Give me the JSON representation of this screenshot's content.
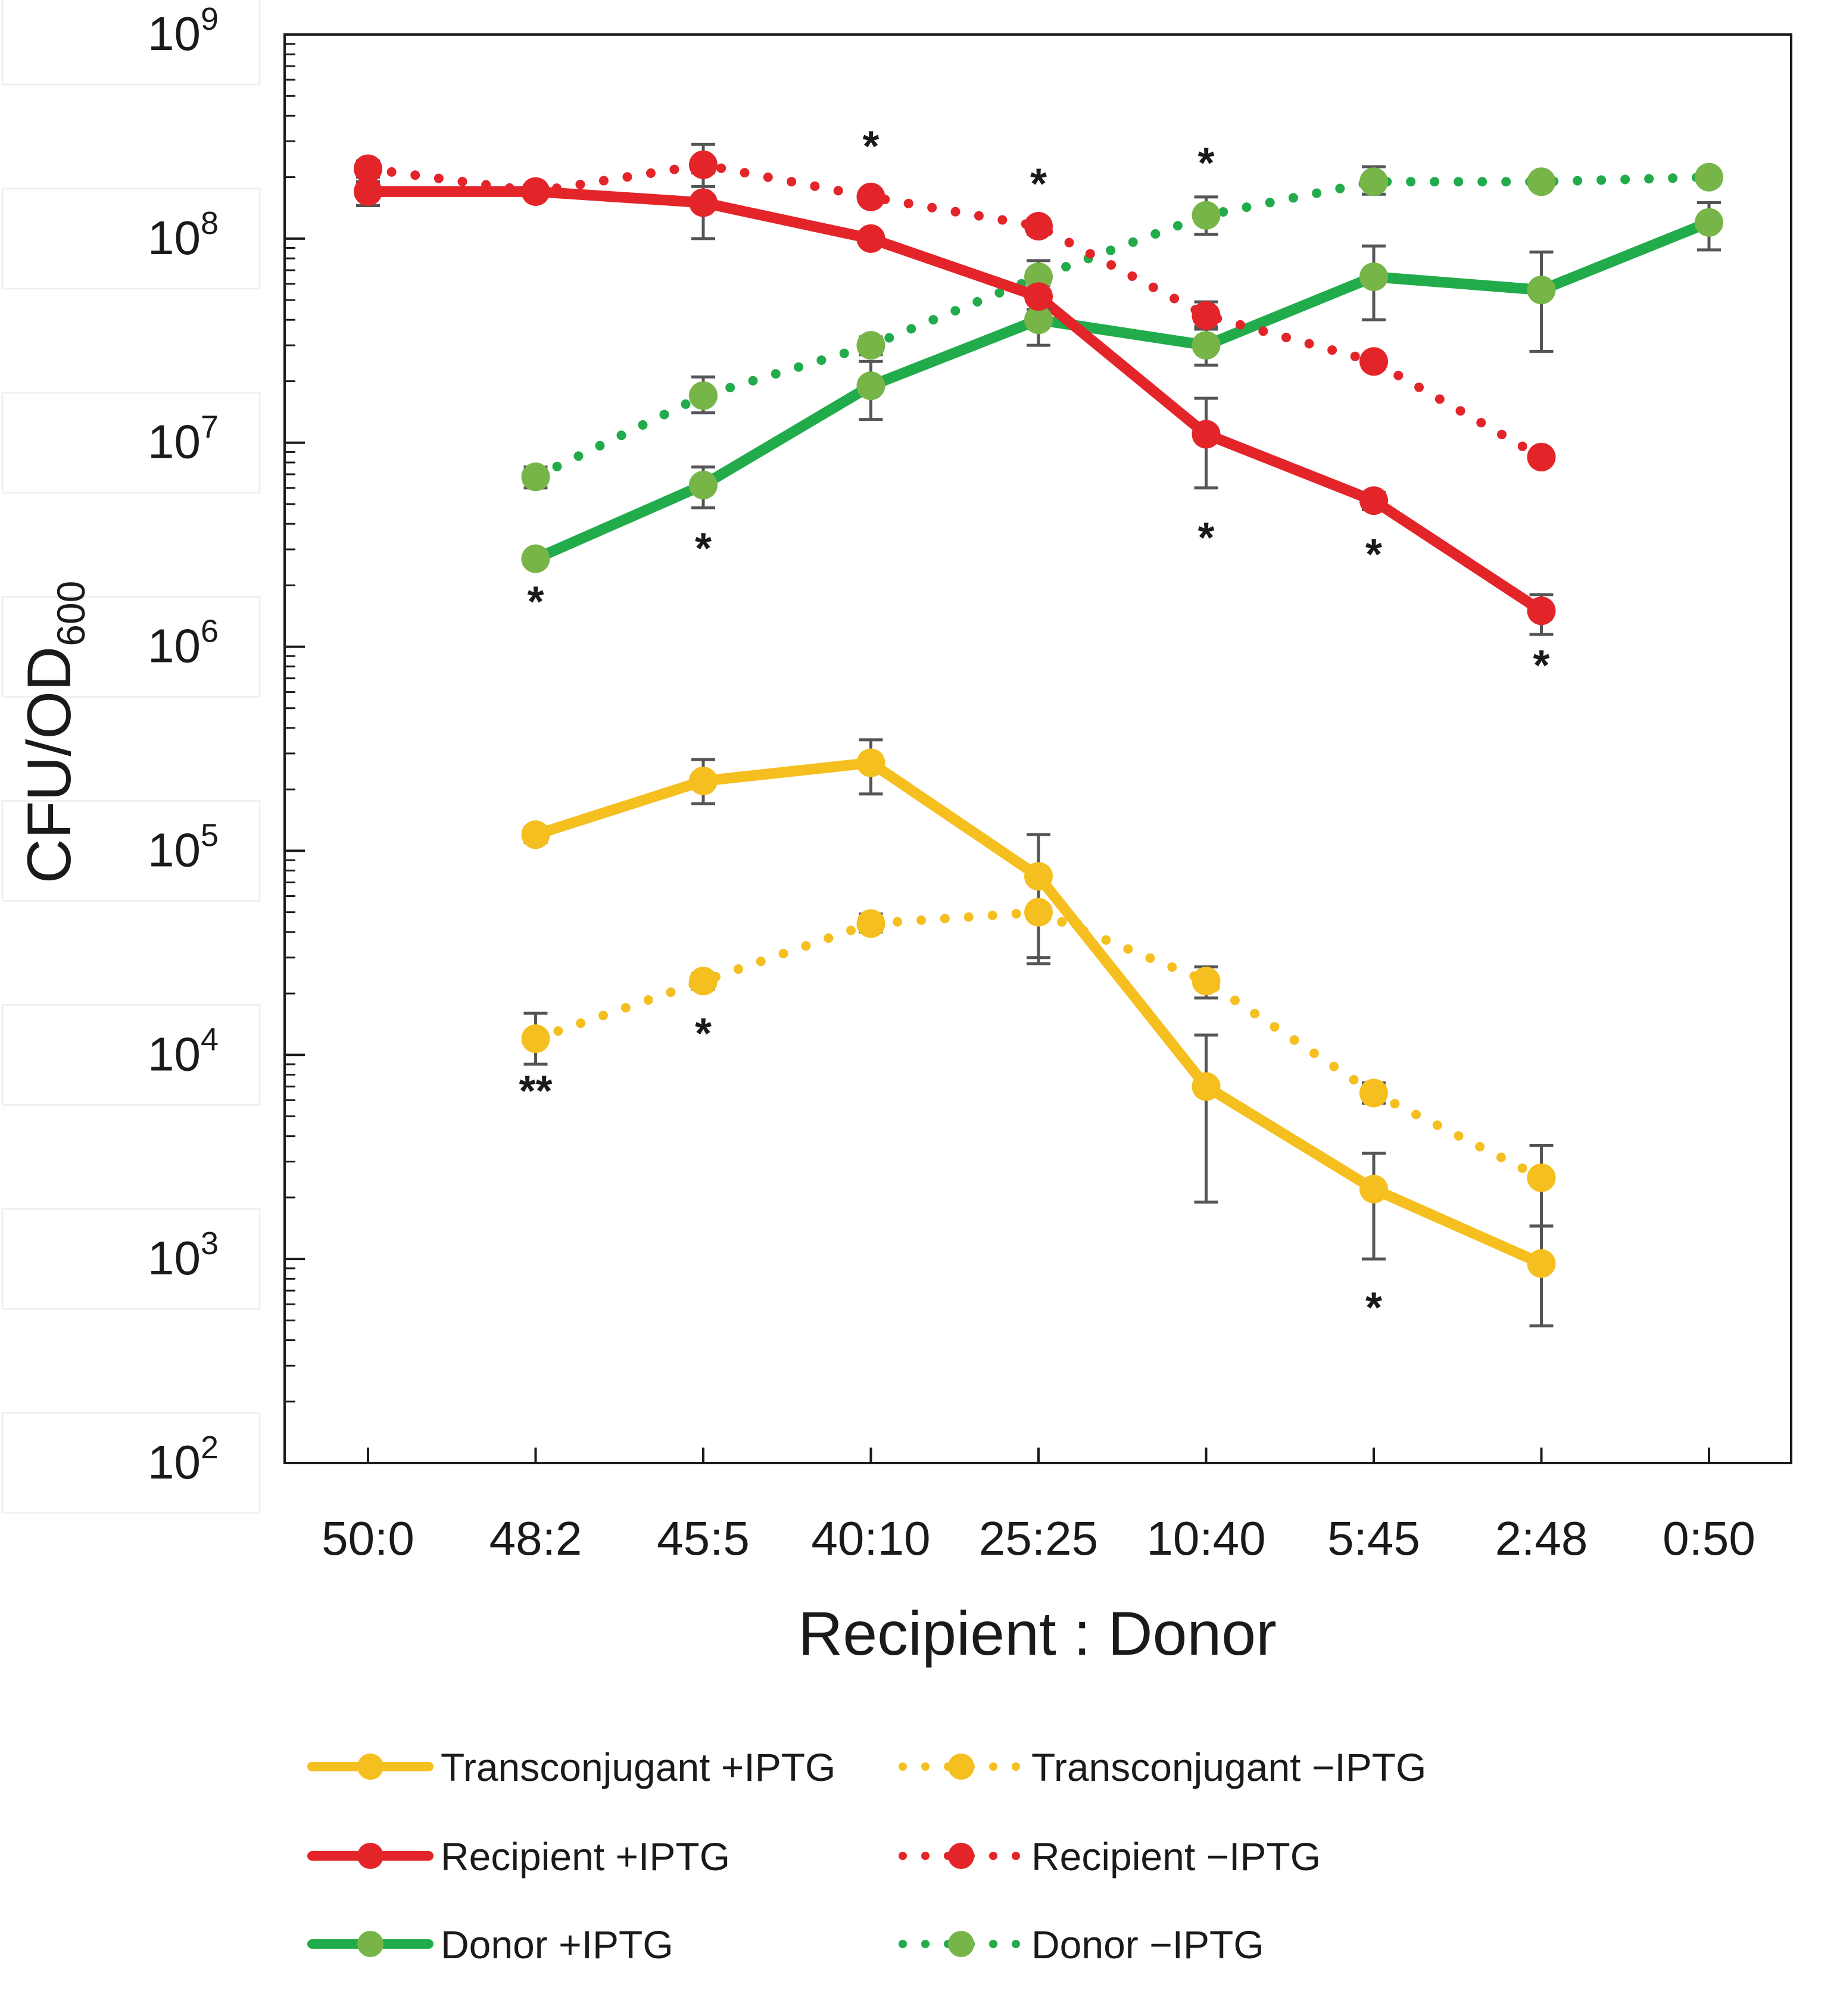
{
  "chart_data": {
    "type": "line",
    "ylabel": "CFU/OD",
    "ylabel_sub": "600",
    "xlabel": "Recipient : Donor",
    "y_scale": "log10",
    "ylim": [
      100,
      1000000000
    ],
    "yticks": [
      {
        "base": "10",
        "exp": "2",
        "value": 100
      },
      {
        "base": "10",
        "exp": "3",
        "value": 1000
      },
      {
        "base": "10",
        "exp": "4",
        "value": 10000
      },
      {
        "base": "10",
        "exp": "5",
        "value": 100000
      },
      {
        "base": "10",
        "exp": "6",
        "value": 1000000
      },
      {
        "base": "10",
        "exp": "7",
        "value": 10000000
      },
      {
        "base": "10",
        "exp": "8",
        "value": 100000000
      },
      {
        "base": "10",
        "exp": "9",
        "value": 1000000000
      }
    ],
    "categories": [
      "50:0",
      "48:2",
      "45:5",
      "40:10",
      "25:25",
      "10:40",
      "5:45",
      "2:48",
      "0:50"
    ],
    "colors": {
      "transconjugant": "#f5bf1f",
      "recipient": "#e3252a",
      "donor": "#21ab4b",
      "donor_marker": "#78b548",
      "errorbar": "#555555"
    },
    "series": [
      {
        "name": "Transconjugant +IPTG",
        "style": "solid",
        "color": "#f5bf1f",
        "marker": "#f5bf1f",
        "values": [
          null,
          120000,
          220000,
          270000,
          75000,
          7000,
          2200,
          950,
          null
        ],
        "err_low": [
          null,
          110000,
          170000,
          190000,
          30000,
          1900,
          1000,
          470,
          null
        ],
        "err_high": [
          null,
          130000,
          280000,
          350000,
          120000,
          12500,
          3300,
          1450,
          null
        ]
      },
      {
        "name": "Transconjugant −IPTG",
        "style": "dotted",
        "color": "#f5bf1f",
        "marker": "#f5bf1f",
        "values": [
          null,
          12000,
          23000,
          44000,
          50000,
          23000,
          6500,
          2500,
          null
        ],
        "err_low": [
          null,
          9000,
          21000,
          40000,
          28000,
          19000,
          5800,
          1450,
          null
        ],
        "err_high": [
          null,
          16000,
          25000,
          49000,
          80000,
          27000,
          7300,
          3600,
          null
        ]
      },
      {
        "name": "Recipient +IPTG",
        "style": "solid",
        "color": "#e3252a",
        "marker": "#e3252a",
        "values": [
          170000000,
          170000000,
          150000000,
          100000000,
          52000000,
          11000000,
          5200000,
          1500000,
          null
        ],
        "err_low": [
          145000000,
          160000000,
          100000000,
          93000000,
          45000000,
          6000000,
          4700000,
          1150000,
          null
        ],
        "err_high": [
          190000000,
          180000000,
          210000000,
          108000000,
          59000000,
          16500000,
          5700000,
          1800000,
          null
        ]
      },
      {
        "name": "Recipient −IPTG",
        "style": "dotted",
        "color": "#e3252a",
        "marker": "#e3252a",
        "values": [
          220000000,
          170000000,
          230000000,
          160000000,
          115000000,
          42000000,
          25000000,
          8500000,
          null
        ],
        "err_low": [
          200000000,
          160000000,
          180000000,
          150000000,
          105000000,
          36000000,
          23000000,
          8000000,
          null
        ],
        "err_high": [
          240000000,
          180000000,
          290000000,
          170000000,
          125000000,
          49000000,
          27000000,
          9000000,
          null
        ]
      },
      {
        "name": "Donor +IPTG",
        "style": "solid",
        "color": "#21ab4b",
        "marker": "#78b548",
        "values": [
          null,
          2700000,
          6200000,
          19000000,
          40000000,
          30000000,
          65000000,
          56000000,
          120000000
        ],
        "err_low": [
          null,
          2500000,
          4800000,
          13000000,
          30000000,
          24000000,
          40000000,
          28000000,
          88000000
        ],
        "err_high": [
          null,
          2900000,
          7600000,
          25000000,
          50000000,
          37000000,
          92000000,
          86000000,
          150000000
        ]
      },
      {
        "name": "Donor −IPTG",
        "style": "dotted",
        "color": "#21ab4b",
        "marker": "#78b548",
        "values": [
          null,
          6800000,
          17000000,
          30000000,
          65000000,
          130000000,
          190000000,
          190000000,
          200000000
        ],
        "err_low": [
          null,
          6000000,
          14000000,
          27000000,
          55000000,
          105000000,
          165000000,
          180000000,
          190000000
        ],
        "err_high": [
          null,
          7600000,
          21000000,
          33000000,
          78000000,
          160000000,
          225000000,
          200000000,
          210000000
        ]
      }
    ],
    "annotations": [
      {
        "text": "*",
        "category": "40:10",
        "value": 290000000
      },
      {
        "text": "*",
        "category": "25:25",
        "value": 190000000
      },
      {
        "text": "*",
        "category": "10:40",
        "value": 240000000
      },
      {
        "text": "*",
        "category": "48:2",
        "value": 1700000
      },
      {
        "text": "*",
        "category": "45:5",
        "value": 3100000
      },
      {
        "text": "*",
        "category": "10:40",
        "value": 3500000
      },
      {
        "text": "*",
        "category": "5:45",
        "value": 2900000
      },
      {
        "text": "*",
        "category": "2:48",
        "value": 830000
      },
      {
        "text": "**",
        "category": "48:2",
        "value": 6800
      },
      {
        "text": "*",
        "category": "45:5",
        "value": 13000
      },
      {
        "text": "*",
        "category": "5:45",
        "value": 590
      }
    ],
    "legend": {
      "placement": "bottom",
      "columns": 2,
      "order": [
        "Transconjugant +IPTG",
        "Transconjugant −IPTG",
        "Recipient +IPTG",
        "Recipient −IPTG",
        "Donor +IPTG",
        "Donor −IPTG"
      ]
    },
    "grid": false
  }
}
